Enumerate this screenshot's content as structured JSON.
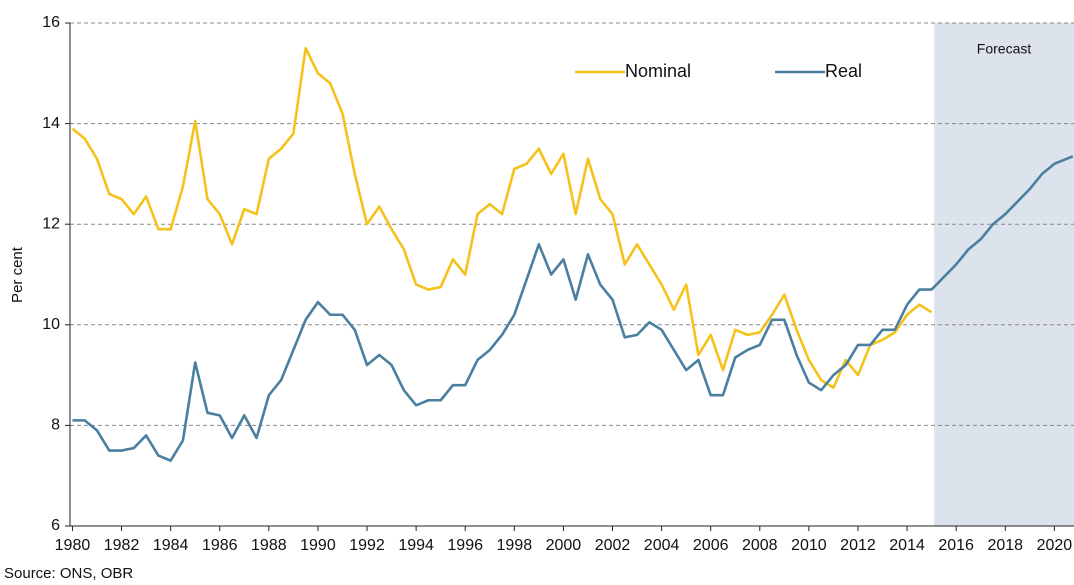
{
  "chart_data": {
    "type": "line",
    "y_label": "Per cent",
    "source": "Source: ONS, OBR",
    "annotation": "Forecast",
    "forecast_start": 2015.1,
    "forecast_color": "#dde3ec",
    "legend": "top-center",
    "grid": true,
    "xlim": [
      1979.9,
      2020.8
    ],
    "xticks": [
      1980,
      1982,
      1984,
      1986,
      1988,
      1990,
      1992,
      1994,
      1996,
      1998,
      2000,
      2002,
      2004,
      2006,
      2008,
      2010,
      2012,
      2014,
      2016,
      2018,
      2020
    ],
    "ylim": [
      6,
      16
    ],
    "yticks": [
      6,
      8,
      10,
      12,
      14,
      16
    ],
    "x": [
      1980,
      1980.5,
      1981,
      1981.5,
      1982,
      1982.5,
      1983,
      1983.5,
      1984,
      1984.5,
      1985,
      1985.5,
      1986,
      1986.5,
      1987,
      1987.5,
      1988,
      1988.5,
      1989,
      1989.5,
      1990,
      1990.5,
      1991,
      1991.5,
      1992,
      1992.5,
      1993,
      1993.5,
      1994,
      1994.5,
      1995,
      1995.5,
      1996,
      1996.5,
      1997,
      1997.5,
      1998,
      1998.5,
      1999,
      1999.5,
      2000,
      2000.5,
      2001,
      2001.5,
      2002,
      2002.5,
      2003,
      2003.5,
      2004,
      2004.5,
      2005,
      2005.5,
      2006,
      2006.5,
      2007,
      2007.5,
      2008,
      2008.5,
      2009,
      2009.5,
      2010,
      2010.5,
      2011,
      2011.5,
      2012,
      2012.5,
      2013,
      2013.5,
      2014,
      2014.5,
      2015,
      2015.5,
      2016,
      2016.5,
      2017,
      2017.5,
      2018,
      2018.5,
      2019,
      2019.5,
      2020,
      2020.5,
      2020.75
    ],
    "series": [
      {
        "name": "Nominal",
        "color": "#f5c21b",
        "values": [
          13.9,
          13.7,
          13.3,
          12.6,
          12.5,
          12.2,
          12.55,
          11.9,
          11.9,
          12.75,
          14.05,
          12.5,
          12.2,
          11.6,
          12.3,
          12.2,
          13.3,
          13.5,
          13.8,
          15.5,
          15.0,
          14.8,
          14.2,
          13.0,
          12.0,
          12.35,
          11.9,
          11.5,
          10.8,
          10.7,
          10.75,
          11.3,
          11.0,
          12.2,
          12.4,
          12.2,
          13.1,
          13.2,
          13.5,
          13.0,
          13.4,
          12.2,
          13.3,
          12.5,
          12.2,
          11.2,
          11.6,
          11.2,
          10.8,
          10.3,
          10.8,
          9.4,
          9.8,
          9.1,
          9.9,
          9.8,
          9.85,
          10.2,
          10.6,
          9.9,
          9.3,
          8.9,
          8.75,
          9.3,
          9.0,
          9.6,
          9.7,
          9.85,
          10.2,
          10.4,
          10.25,
          null,
          null,
          null,
          null,
          null,
          null,
          null,
          null,
          null,
          null,
          null,
          null
        ]
      },
      {
        "name": "Real",
        "color": "#4a7fa0",
        "values": [
          8.1,
          8.1,
          7.9,
          7.5,
          7.5,
          7.55,
          7.8,
          7.4,
          7.3,
          7.7,
          9.25,
          8.25,
          8.2,
          7.75,
          8.2,
          7.75,
          8.6,
          8.9,
          9.5,
          10.1,
          10.45,
          10.2,
          10.2,
          9.9,
          9.2,
          9.4,
          9.2,
          8.7,
          8.4,
          8.5,
          8.5,
          8.8,
          8.8,
          9.3,
          9.5,
          9.8,
          10.2,
          10.9,
          11.6,
          11.0,
          11.3,
          10.5,
          11.4,
          10.8,
          10.5,
          9.75,
          9.8,
          10.05,
          9.9,
          9.5,
          9.1,
          9.3,
          8.6,
          8.6,
          9.35,
          9.5,
          9.6,
          10.1,
          10.1,
          9.4,
          8.85,
          8.7,
          9.0,
          9.2,
          9.6,
          9.6,
          9.9,
          9.9,
          10.4,
          10.7,
          10.7,
          10.95,
          11.2,
          11.5,
          11.7,
          12.0,
          12.2,
          12.45,
          12.7,
          13.0,
          13.2,
          13.3,
          13.35
        ]
      }
    ]
  }
}
